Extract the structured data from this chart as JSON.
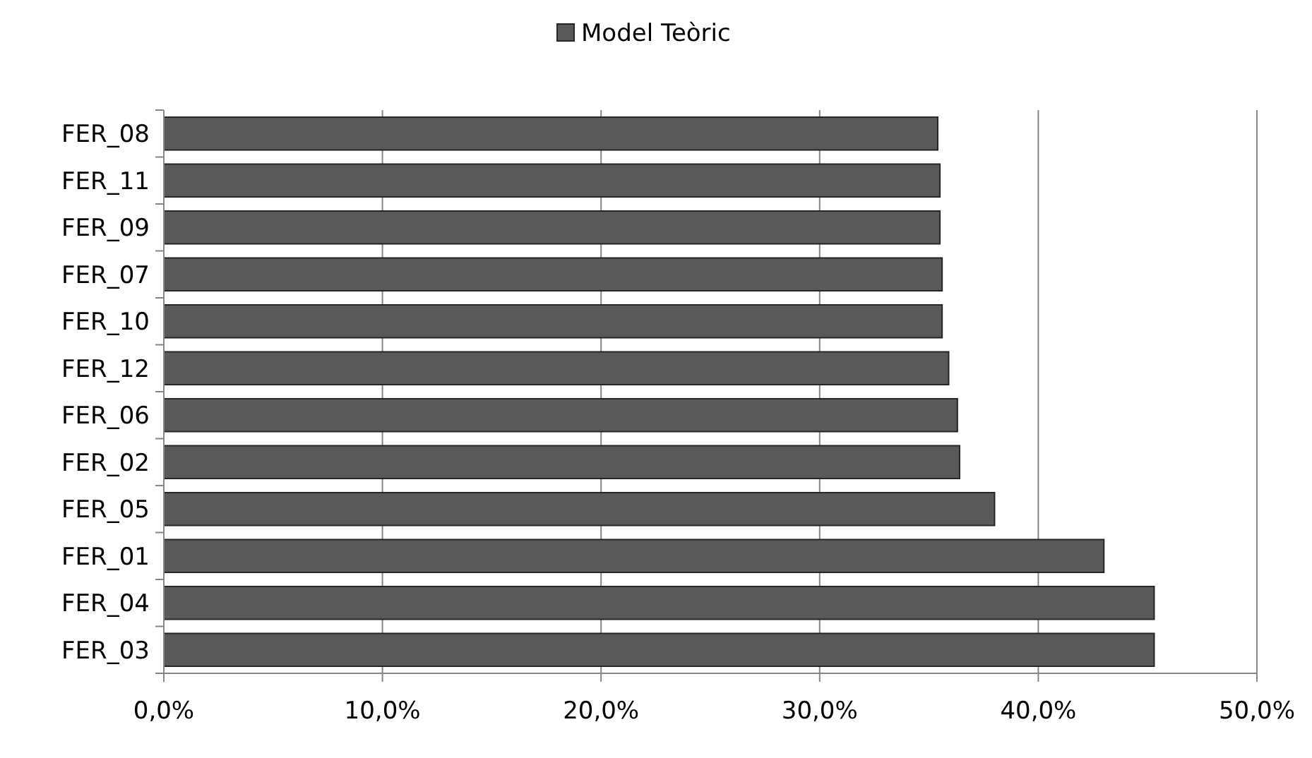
{
  "chart_data": {
    "type": "bar",
    "orientation": "horizontal",
    "categories": [
      "FER_08",
      "FER_11",
      "FER_09",
      "FER_07",
      "FER_10",
      "FER_12",
      "FER_06",
      "FER_02",
      "FER_05",
      "FER_01",
      "FER_04",
      "FER_03"
    ],
    "series": [
      {
        "name": "Model Teòric",
        "color": "#595959",
        "values": [
          35.4,
          35.5,
          35.5,
          35.6,
          35.6,
          35.9,
          36.3,
          36.4,
          38.0,
          43.0,
          45.3,
          45.3
        ]
      }
    ],
    "xlim": [
      0,
      50
    ],
    "xticks": [
      {
        "value": 0,
        "label": "0,0%"
      },
      {
        "value": 10,
        "label": "10,0%"
      },
      {
        "value": 20,
        "label": "20,0%"
      },
      {
        "value": 30,
        "label": "30,0%"
      },
      {
        "value": 40,
        "label": "40,0%"
      },
      {
        "value": 50,
        "label": "50,0%"
      }
    ],
    "grid": "x",
    "legend": "top"
  }
}
